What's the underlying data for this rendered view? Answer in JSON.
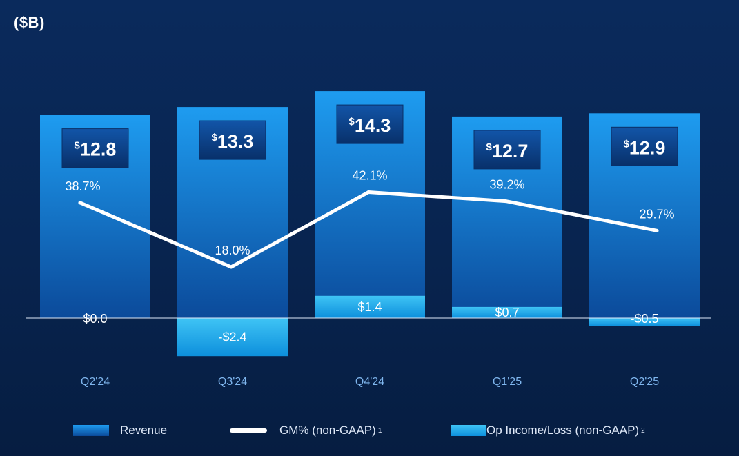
{
  "unit_label": "($B)",
  "chart_data": {
    "type": "bar",
    "categories": [
      "Q2'24",
      "Q3'24",
      "Q4'24",
      "Q1'25",
      "Q2'25"
    ],
    "series": [
      {
        "name": "Revenue",
        "kind": "bar",
        "values": [
          12.8,
          13.3,
          14.3,
          12.7,
          12.9
        ],
        "labels": [
          "12.8",
          "13.3",
          "14.3",
          "12.7",
          "12.9"
        ],
        "label_prefix": "$"
      },
      {
        "name": "GM% (non-GAAP)",
        "footnote": "1",
        "kind": "line",
        "values": [
          38.7,
          18.0,
          42.1,
          39.2,
          29.7
        ],
        "labels": [
          "38.7%",
          "18.0%",
          "42.1%",
          "39.2%",
          "29.7%"
        ]
      },
      {
        "name": "Op Income/Loss (non-GAAP)",
        "footnote": "2",
        "kind": "bar",
        "values": [
          0.0,
          -2.4,
          1.4,
          0.7,
          -0.5
        ],
        "labels": [
          "$0.0",
          "-$2.4",
          "$1.4",
          "$0.7",
          "-$0.5"
        ]
      }
    ],
    "title": "",
    "xlabel": "",
    "ylabel": "",
    "ylim": [
      -2.4,
      14.3
    ],
    "grid": false,
    "legend_position": "bottom"
  },
  "legend": [
    {
      "label": "Revenue",
      "sup": ""
    },
    {
      "label": "GM% (non-GAAP)",
      "sup": "1"
    },
    {
      "label": "Op Income/Loss (non-GAAP)",
      "sup": "2"
    }
  ],
  "colors": {
    "background": "#0a2a5c",
    "revenue_top": "#1e9cf0",
    "revenue_bottom": "#0b4a9a",
    "op_income_top": "#3fc4f5",
    "op_income_bottom": "#0d8fdc",
    "label_box": "#0a3e84",
    "line": "#ffffff",
    "axis_label": "#7fb6ee"
  }
}
